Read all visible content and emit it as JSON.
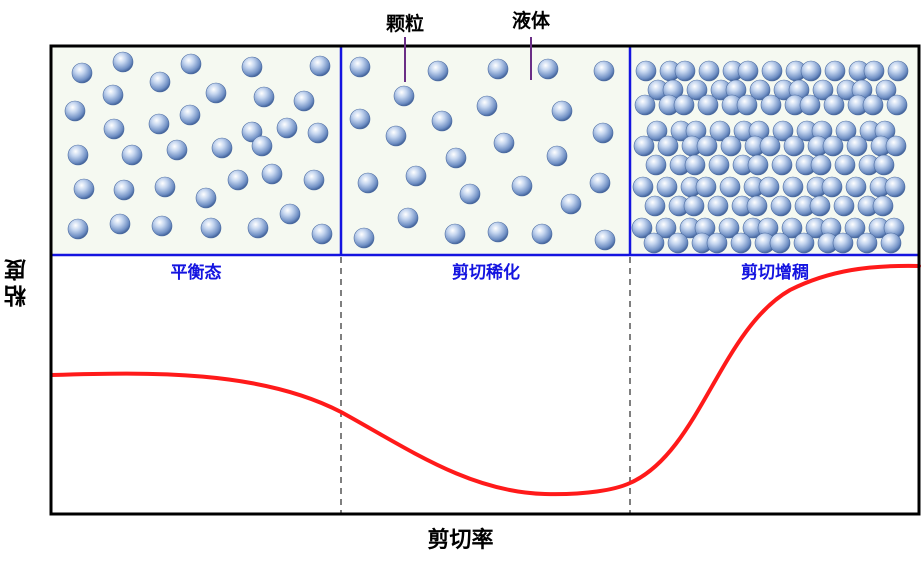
{
  "diagram": {
    "y_axis_label": "粘度",
    "x_axis_label": "剪切率",
    "annotations": {
      "particle": "颗粒",
      "liquid": "液体"
    },
    "panels": [
      {
        "label": "平衡态"
      },
      {
        "label": "剪切稀化"
      },
      {
        "label": "剪切增稠"
      }
    ],
    "colors": {
      "frame": "#000000",
      "panel_border": "#1414e0",
      "panel_label": "#1414e0",
      "panel_fill": "#f5f9f1",
      "curve": "#ff1a1a",
      "divider": "#555555",
      "annotation_line": "#6a2e86",
      "particle_light": "#ffffff",
      "particle_mid": "#a9c1e6",
      "particle_dark": "#3f5f96"
    }
  }
}
